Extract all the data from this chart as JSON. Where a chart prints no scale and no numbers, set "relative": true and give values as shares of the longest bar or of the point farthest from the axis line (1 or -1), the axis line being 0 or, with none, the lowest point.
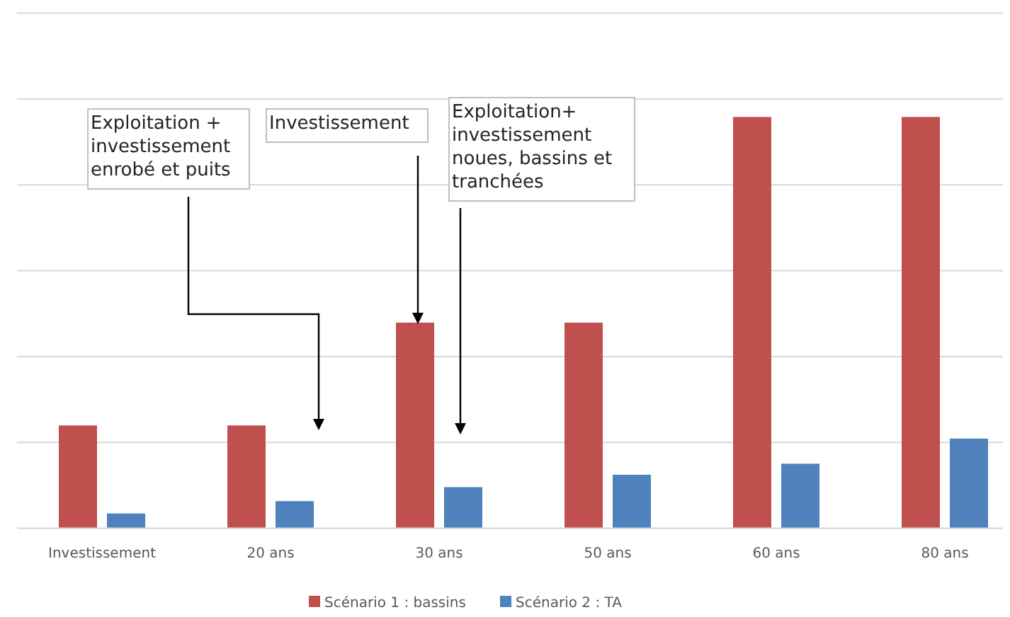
{
  "chart_data": {
    "type": "bar",
    "relative": true,
    "categories": [
      "Investissement",
      "20 ans",
      "30 ans",
      "50 ans",
      "60 ans",
      "80 ans"
    ],
    "series": [
      {
        "name": "Scénario 1 : bassins",
        "color": "#c0504d",
        "values": [
          0.25,
          0.25,
          0.5,
          0.5,
          1,
          1
        ]
      },
      {
        "name": "Scénario 2 : TA",
        "color": "#4f81bd",
        "values": [
          0.036,
          0.066,
          0.1,
          0.13,
          0.157,
          0.218
        ]
      }
    ],
    "grid": true,
    "legend": "bottom",
    "annotations": [
      "Exploitation + investissement enrobé et puits",
      "Investissement",
      "Exploitation+ investissement noues, bassins et tranchées"
    ]
  }
}
